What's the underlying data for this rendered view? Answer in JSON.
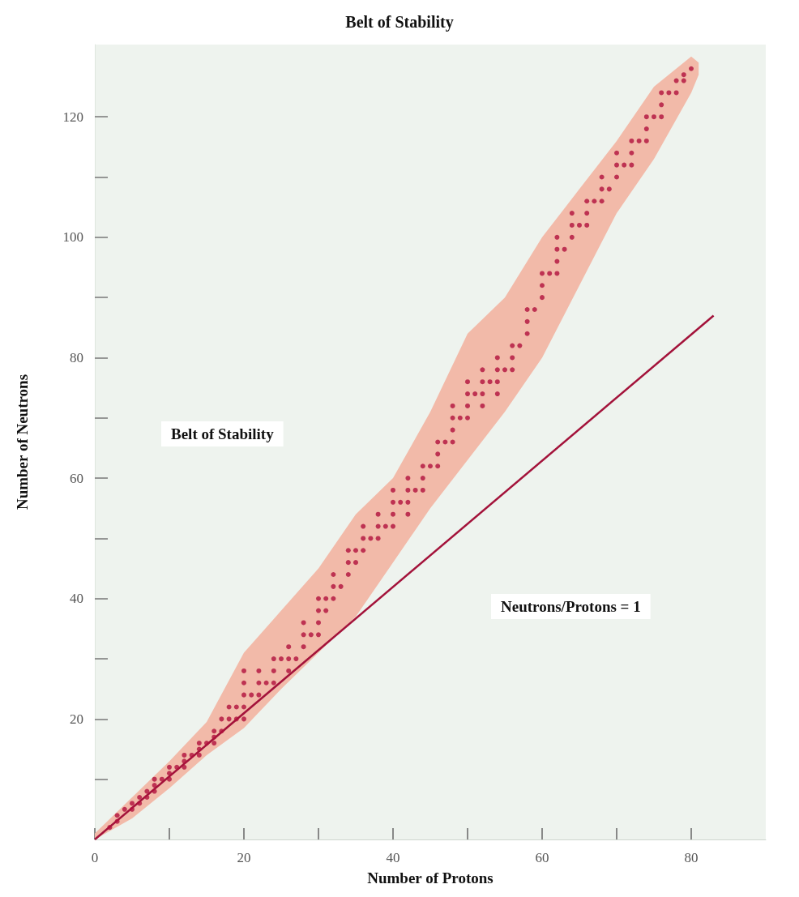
{
  "chart_data": {
    "type": "scatter",
    "title": "Belt of Stability",
    "xlabel": "Number of Protons",
    "ylabel": "Number of Neutrons",
    "xlim": [
      0,
      90
    ],
    "ylim": [
      0,
      132
    ],
    "xticks": [
      0,
      {
        "value": 10,
        "label": null
      },
      20,
      {
        "value": 30,
        "label": null
      },
      40,
      {
        "value": 50,
        "label": null
      },
      60,
      {
        "value": 70,
        "label": null
      },
      80
    ],
    "yticks": [
      {
        "value": 10,
        "label": null
      },
      20,
      {
        "value": 30,
        "label": null
      },
      40,
      {
        "value": 50,
        "label": null
      },
      60,
      {
        "value": 70,
        "label": null
      },
      80,
      {
        "value": 90,
        "label": null
      },
      100,
      {
        "value": 110,
        "label": null
      },
      120
    ],
    "grid": false,
    "annotations": [
      "Belt of Stability",
      "Neutrons/Protons = 1"
    ],
    "series": [
      {
        "type": "line",
        "color": "#f2baa9",
        "x": [
          0,
          5,
          10,
          15,
          20,
          25,
          30,
          35,
          40,
          45,
          50,
          55,
          60,
          65,
          70,
          75,
          80,
          81
        ],
        "values": [
          null,
          null,
          null,
          null,
          null,
          null,
          null,
          null,
          null,
          null,
          null,
          null,
          null,
          null,
          null,
          null,
          null,
          null
        ],
        "lower": [
          0,
          3.5,
          8.5,
          14,
          18.5,
          25,
          31,
          37,
          46,
          55,
          63,
          71,
          80,
          92,
          104,
          113,
          124,
          127
        ],
        "upper": [
          1,
          7,
          13,
          19.5,
          31,
          38,
          45,
          54,
          60,
          71,
          84,
          90,
          100,
          108,
          116,
          125,
          130,
          129
        ]
      },
      {
        "type": "line",
        "color": "#a3123a",
        "x": [
          0,
          83
        ],
        "values": [
          0,
          87
        ]
      },
      {
        "color": "#b0103c",
        "marker": "circle",
        "x": [
          2,
          3,
          3,
          4,
          5,
          5,
          6,
          6,
          7,
          7,
          8,
          8,
          8,
          9,
          10,
          10,
          10,
          11,
          12,
          12,
          12,
          13,
          14,
          14,
          14,
          15,
          16,
          16,
          16,
          17,
          17,
          18,
          18,
          19,
          19,
          20,
          20,
          20,
          20,
          20,
          21,
          22,
          22,
          22,
          23,
          24,
          24,
          24,
          25,
          26,
          26,
          26,
          27,
          28,
          28,
          28,
          29,
          30,
          30,
          30,
          30,
          31,
          31,
          32,
          32,
          32,
          33,
          34,
          34,
          34,
          35,
          35,
          36,
          36,
          36,
          37,
          38,
          38,
          38,
          39,
          40,
          40,
          40,
          40,
          41,
          42,
          42,
          42,
          42,
          43,
          44,
          44,
          44,
          45,
          46,
          46,
          46,
          47,
          48,
          48,
          48,
          48,
          49,
          50,
          50,
          50,
          50,
          51,
          52,
          52,
          52,
          52,
          53,
          54,
          54,
          54,
          54,
          55,
          56,
          56,
          56,
          57,
          58,
          58,
          58,
          59,
          60,
          60,
          60,
          61,
          62,
          62,
          62,
          62,
          63,
          64,
          64,
          64,
          65,
          66,
          66,
          66,
          67,
          68,
          68,
          68,
          69,
          70,
          70,
          70,
          71,
          72,
          72,
          72,
          73,
          74,
          74,
          74,
          75,
          76,
          76,
          76,
          77,
          78,
          78,
          79,
          79,
          80
        ],
        "values": [
          2,
          3,
          4,
          5,
          5,
          6,
          6,
          7,
          7,
          8,
          8,
          9,
          10,
          10,
          10,
          11,
          12,
          12,
          12,
          13,
          14,
          14,
          14,
          15,
          16,
          16,
          16,
          17,
          18,
          18,
          20,
          20,
          22,
          20,
          22,
          20,
          22,
          24,
          26,
          28,
          24,
          24,
          26,
          28,
          26,
          26,
          28,
          30,
          30,
          28,
          30,
          32,
          30,
          32,
          34,
          36,
          34,
          34,
          36,
          38,
          40,
          38,
          40,
          40,
          42,
          44,
          42,
          44,
          46,
          48,
          46,
          48,
          48,
          50,
          52,
          50,
          50,
          52,
          54,
          52,
          52,
          54,
          56,
          58,
          56,
          54,
          56,
          58,
          60,
          58,
          58,
          60,
          62,
          62,
          62,
          64,
          66,
          66,
          66,
          68,
          70,
          72,
          70,
          70,
          72,
          74,
          76,
          74,
          72,
          74,
          76,
          78,
          76,
          74,
          76,
          78,
          80,
          78,
          78,
          80,
          82,
          82,
          84,
          86,
          88,
          88,
          90,
          92,
          94,
          94,
          94,
          96,
          98,
          100,
          98,
          100,
          102,
          104,
          102,
          102,
          104,
          106,
          106,
          106,
          108,
          110,
          108,
          110,
          112,
          114,
          112,
          112,
          114,
          116,
          116,
          116,
          118,
          120,
          120,
          120,
          122,
          124,
          124,
          124,
          126,
          126,
          127,
          128
        ]
      }
    ]
  }
}
